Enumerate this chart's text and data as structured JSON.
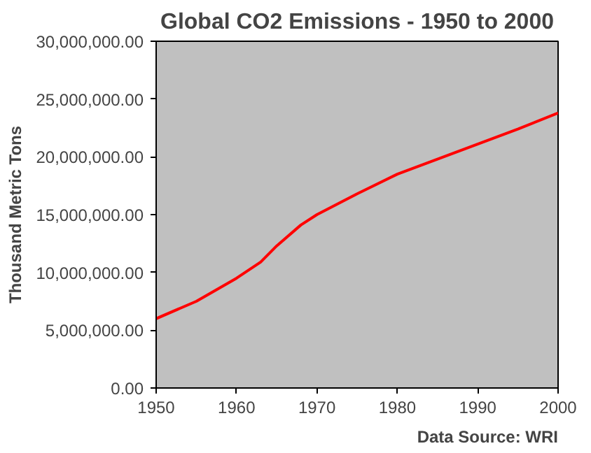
{
  "chart_data": {
    "type": "line",
    "title": "Global CO2 Emissions - 1950 to 2000",
    "ylabel": "Thousand Metric Tons",
    "x": [
      1950,
      1955,
      1960,
      1963,
      1965,
      1968,
      1970,
      1975,
      1980,
      1985,
      1990,
      1995,
      2000
    ],
    "series": [
      {
        "color": "#ff0000",
        "values": [
          6000000,
          7500000,
          9500000,
          10900000,
          12300000,
          14100000,
          15000000,
          16800000,
          18500000,
          19800000,
          21100000,
          22400000,
          23800000
        ]
      }
    ],
    "xlim": [
      1950,
      2000
    ],
    "xticks": [
      1950,
      1960,
      1970,
      1980,
      1990,
      2000
    ],
    "ylim": [
      0,
      30000000
    ],
    "yticks": [
      {
        "value": 0,
        "label": "0.00"
      },
      {
        "value": 5000000,
        "label": "5,000,000.00"
      },
      {
        "value": 10000000,
        "label": "10,000,000.00"
      },
      {
        "value": 15000000,
        "label": "15,000,000.00"
      },
      {
        "value": 20000000,
        "label": "20,000,000.00"
      },
      {
        "value": 25000000,
        "label": "25,000,000.00"
      },
      {
        "value": 30000000,
        "label": "30,000,000.00"
      }
    ],
    "grid": false,
    "marker": "none",
    "line_style": "solid",
    "annotations": [
      "Data Source: WRI"
    ]
  }
}
